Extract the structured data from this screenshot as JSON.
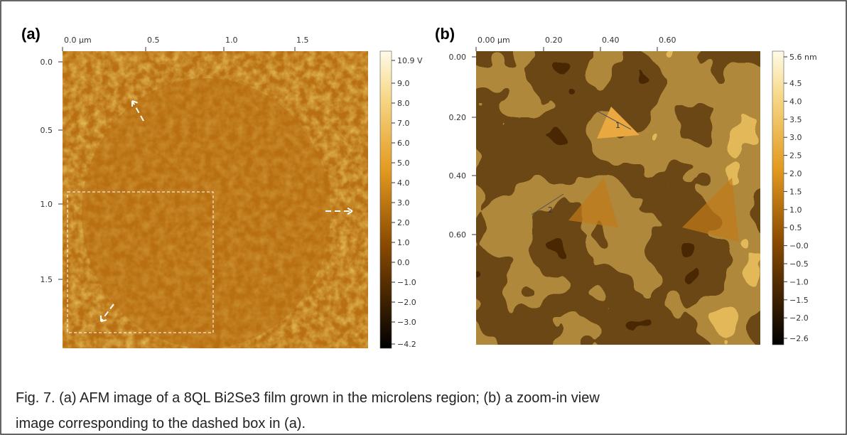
{
  "panels": [
    {
      "label": "(a)",
      "top_ticks": [
        "0.0 µm",
        "0.5",
        "1.0",
        "1.5"
      ],
      "left_ticks": [
        "0.0",
        "0.5",
        "1.0",
        "1.5"
      ],
      "colorbar_ticks": [
        "10.9 V",
        "9.0",
        "8.0",
        "7.0",
        "6.0",
        "5.0",
        "4.0",
        "3.0",
        "2.0",
        "1.0",
        "0.0",
        "−1.0",
        "−2.0",
        "−3.0",
        "−4.2"
      ]
    },
    {
      "label": "(b)",
      "top_ticks": [
        "0.00 µm",
        "0.20",
        "0.40",
        "0.60"
      ],
      "left_ticks": [
        "0.00",
        "0.20",
        "0.40",
        "0.60"
      ],
      "colorbar_ticks": [
        "5.6 nm",
        "4.5",
        "4.0",
        "3.5",
        "3.0",
        "2.5",
        "2.0",
        "1.5",
        "1.0",
        "0.5",
        "−0.0",
        "−0.5",
        "−1.0",
        "−1.5",
        "−2.0",
        "−2.6"
      ],
      "profile_labels": [
        "1",
        "2"
      ]
    }
  ],
  "caption_lines": [
    "Fig. 7. (a) AFM image of a 8QL Bi2Se3 film grown in the microlens region; (b) a zoom-in view",
    "image corresponding to the dashed box in (a)."
  ]
}
